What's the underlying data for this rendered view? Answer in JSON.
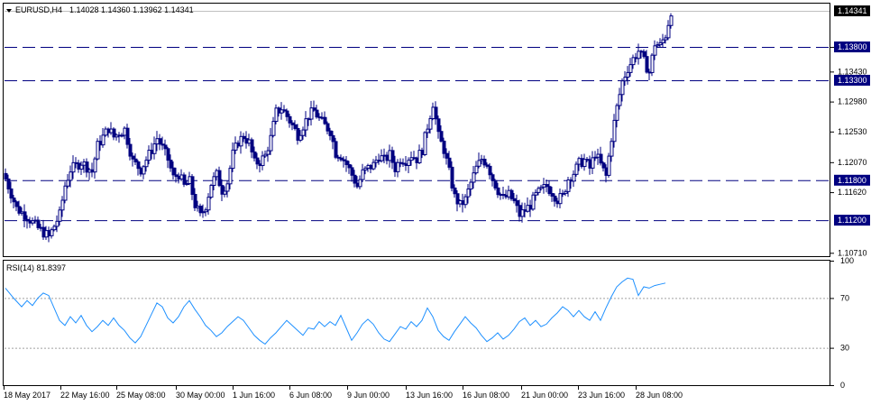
{
  "header": {
    "symbol": "EURUSD,H4",
    "ohlc": "1.14028 1.14360 1.13962 1.14341",
    "arrow_icon": "triangle-down-icon"
  },
  "rsi": {
    "label": "RSI(14) 81.8397",
    "levels": [
      100,
      70,
      30,
      0
    ],
    "dotted_levels": [
      70,
      30
    ]
  },
  "colors": {
    "candle": "#000080",
    "hline": "#000080",
    "rsi_line": "#1e90ff",
    "price_tag_current": "#000000",
    "price_tag_level": "#000080"
  },
  "chart_data": [
    {
      "type": "candlestick",
      "title": "EURUSD,H4",
      "y_ticks": [
        "1.13800",
        "1.13430",
        "1.12980",
        "1.12530",
        "1.12070",
        "1.11620",
        "1.10710"
      ],
      "x_ticks": [
        "18 May 2017",
        "22 May 16:00",
        "25 May 08:00",
        "30 May 00:00",
        "1 Jun 16:00",
        "6 Jun 08:00",
        "9 Jun 00:00",
        "13 Jun 16:00",
        "16 Jun 08:00",
        "21 Jun 00:00",
        "23 Jun 16:00",
        "28 Jun 08:00"
      ],
      "ylim": [
        1.1066,
        1.1445
      ],
      "current_price": 1.14341,
      "horizontal_levels": [
        1.138,
        1.133,
        1.118,
        1.112
      ],
      "level_labels": [
        "1.13800",
        "1.13300",
        "1.11800",
        "1.11200"
      ],
      "current_label": "1.14341",
      "close_path": [
        [
          0,
          1.1182
        ],
        [
          4,
          1.1138
        ],
        [
          8,
          1.1125
        ],
        [
          12,
          1.1108
        ],
        [
          16,
          1.1095
        ],
        [
          20,
          1.1128
        ],
        [
          22,
          1.1172
        ],
        [
          24,
          1.1196
        ],
        [
          28,
          1.1207
        ],
        [
          32,
          1.1193
        ],
        [
          34,
          1.1232
        ],
        [
          38,
          1.1258
        ],
        [
          40,
          1.1245
        ],
        [
          44,
          1.1256
        ],
        [
          47,
          1.1208
        ],
        [
          50,
          1.1196
        ],
        [
          54,
          1.1226
        ],
        [
          56,
          1.1243
        ],
        [
          58,
          1.1228
        ],
        [
          60,
          1.1211
        ],
        [
          62,
          1.1184
        ],
        [
          64,
          1.1189
        ],
        [
          66,
          1.1171
        ],
        [
          68,
          1.1178
        ],
        [
          70,
          1.1143
        ],
        [
          72,
          1.1126
        ],
        [
          74,
          1.1142
        ],
        [
          76,
          1.1175
        ],
        [
          78,
          1.1188
        ],
        [
          80,
          1.1165
        ],
        [
          82,
          1.1177
        ],
        [
          84,
          1.1219
        ],
        [
          86,
          1.1238
        ],
        [
          88,
          1.1246
        ],
        [
          90,
          1.1236
        ],
        [
          92,
          1.1206
        ],
        [
          94,
          1.1208
        ],
        [
          96,
          1.1217
        ],
        [
          98,
          1.1243
        ],
        [
          100,
          1.1282
        ],
        [
          102,
          1.1288
        ],
        [
          104,
          1.1276
        ],
        [
          106,
          1.1262
        ],
        [
          108,
          1.1248
        ],
        [
          110,
          1.1262
        ],
        [
          112,
          1.1277
        ],
        [
          114,
          1.1284
        ],
        [
          116,
          1.1272
        ],
        [
          118,
          1.1262
        ],
        [
          120,
          1.1254
        ],
        [
          122,
          1.1221
        ],
        [
          124,
          1.1217
        ],
        [
          126,
          1.1204
        ],
        [
          128,
          1.1188
        ],
        [
          130,
          1.1171
        ],
        [
          132,
          1.1191
        ],
        [
          134,
          1.1198
        ],
        [
          136,
          1.1203
        ],
        [
          138,
          1.1217
        ],
        [
          140,
          1.121
        ],
        [
          142,
          1.1218
        ],
        [
          144,
          1.1198
        ],
        [
          146,
          1.1212
        ],
        [
          148,
          1.121
        ],
        [
          150,
          1.1218
        ],
        [
          152,
          1.1212
        ],
        [
          154,
          1.1226
        ],
        [
          156,
          1.1261
        ],
        [
          158,
          1.1296
        ],
        [
          160,
          1.1246
        ],
        [
          162,
          1.1226
        ],
        [
          164,
          1.1192
        ],
        [
          166,
          1.1155
        ],
        [
          168,
          1.1142
        ],
        [
          170,
          1.1151
        ],
        [
          172,
          1.1176
        ],
        [
          174,
          1.1198
        ],
        [
          176,
          1.1212
        ],
        [
          178,
          1.1205
        ],
        [
          180,
          1.1182
        ],
        [
          182,
          1.1165
        ],
        [
          184,
          1.1152
        ],
        [
          186,
          1.1158
        ],
        [
          188,
          1.1147
        ],
        [
          190,
          1.1128
        ],
        [
          192,
          1.1135
        ],
        [
          194,
          1.1143
        ],
        [
          196,
          1.1157
        ],
        [
          198,
          1.1165
        ],
        [
          200,
          1.1171
        ],
        [
          202,
          1.1162
        ],
        [
          204,
          1.1151
        ],
        [
          206,
          1.1156
        ],
        [
          208,
          1.1182
        ],
        [
          210,
          1.1191
        ],
        [
          212,
          1.1205
        ],
        [
          214,
          1.121
        ],
        [
          216,
          1.1198
        ],
        [
          218,
          1.1221
        ],
        [
          220,
          1.1203
        ],
        [
          222,
          1.1186
        ],
        [
          224,
          1.1244
        ],
        [
          226,
          1.1289
        ],
        [
          228,
          1.1328
        ],
        [
          230,
          1.1348
        ],
        [
          232,
          1.1362
        ],
        [
          234,
          1.1374
        ],
        [
          236,
          1.1358
        ],
        [
          238,
          1.1342
        ],
        [
          240,
          1.1385
        ],
        [
          242,
          1.1382
        ],
        [
          244,
          1.1398
        ],
        [
          246,
          1.14341
        ]
      ]
    },
    {
      "type": "line",
      "title": "RSI(14) 81.8397",
      "ylim": [
        0,
        100
      ],
      "y_ticks": [
        100,
        70,
        30,
        0
      ],
      "points": [
        [
          0,
          78
        ],
        [
          3,
          70
        ],
        [
          6,
          63
        ],
        [
          8,
          68
        ],
        [
          10,
          64
        ],
        [
          12,
          70
        ],
        [
          14,
          74
        ],
        [
          16,
          72
        ],
        [
          18,
          62
        ],
        [
          20,
          52
        ],
        [
          22,
          48
        ],
        [
          24,
          55
        ],
        [
          26,
          50
        ],
        [
          28,
          56
        ],
        [
          30,
          48
        ],
        [
          32,
          43
        ],
        [
          34,
          47
        ],
        [
          36,
          52
        ],
        [
          38,
          48
        ],
        [
          40,
          54
        ],
        [
          42,
          48
        ],
        [
          44,
          44
        ],
        [
          46,
          38
        ],
        [
          48,
          34
        ],
        [
          50,
          39
        ],
        [
          52,
          48
        ],
        [
          54,
          57
        ],
        [
          56,
          66
        ],
        [
          58,
          63
        ],
        [
          60,
          54
        ],
        [
          62,
          50
        ],
        [
          64,
          55
        ],
        [
          66,
          63
        ],
        [
          68,
          68
        ],
        [
          70,
          61
        ],
        [
          72,
          55
        ],
        [
          74,
          48
        ],
        [
          76,
          44
        ],
        [
          78,
          39
        ],
        [
          80,
          42
        ],
        [
          82,
          47
        ],
        [
          84,
          51
        ],
        [
          86,
          55
        ],
        [
          88,
          52
        ],
        [
          90,
          46
        ],
        [
          92,
          40
        ],
        [
          94,
          36
        ],
        [
          96,
          33
        ],
        [
          98,
          38
        ],
        [
          100,
          42
        ],
        [
          102,
          47
        ],
        [
          104,
          52
        ],
        [
          106,
          48
        ],
        [
          108,
          44
        ],
        [
          110,
          40
        ],
        [
          112,
          46
        ],
        [
          114,
          45
        ],
        [
          116,
          51
        ],
        [
          118,
          47
        ],
        [
          120,
          51
        ],
        [
          122,
          48
        ],
        [
          124,
          56
        ],
        [
          126,
          46
        ],
        [
          128,
          36
        ],
        [
          130,
          42
        ],
        [
          132,
          49
        ],
        [
          134,
          53
        ],
        [
          136,
          49
        ],
        [
          138,
          42
        ],
        [
          140,
          37
        ],
        [
          142,
          35
        ],
        [
          144,
          41
        ],
        [
          146,
          47
        ],
        [
          148,
          45
        ],
        [
          150,
          51
        ],
        [
          152,
          47
        ],
        [
          154,
          52
        ],
        [
          156,
          62
        ],
        [
          158,
          55
        ],
        [
          160,
          44
        ],
        [
          162,
          39
        ],
        [
          164,
          36
        ],
        [
          166,
          43
        ],
        [
          168,
          49
        ],
        [
          170,
          55
        ],
        [
          172,
          50
        ],
        [
          174,
          46
        ],
        [
          176,
          40
        ],
        [
          178,
          35
        ],
        [
          180,
          38
        ],
        [
          182,
          42
        ],
        [
          184,
          37
        ],
        [
          186,
          40
        ],
        [
          188,
          45
        ],
        [
          190,
          51
        ],
        [
          192,
          54
        ],
        [
          194,
          48
        ],
        [
          196,
          52
        ],
        [
          198,
          47
        ],
        [
          200,
          49
        ],
        [
          202,
          54
        ],
        [
          204,
          58
        ],
        [
          206,
          63
        ],
        [
          208,
          60
        ],
        [
          210,
          55
        ],
        [
          212,
          60
        ],
        [
          214,
          55
        ],
        [
          216,
          52
        ],
        [
          218,
          59
        ],
        [
          220,
          52
        ],
        [
          222,
          62
        ],
        [
          224,
          71
        ],
        [
          226,
          79
        ],
        [
          228,
          83
        ],
        [
          230,
          86
        ],
        [
          232,
          85
        ],
        [
          234,
          72
        ],
        [
          236,
          79
        ],
        [
          238,
          78
        ],
        [
          240,
          80
        ],
        [
          242,
          81
        ],
        [
          244,
          82
        ]
      ]
    }
  ]
}
